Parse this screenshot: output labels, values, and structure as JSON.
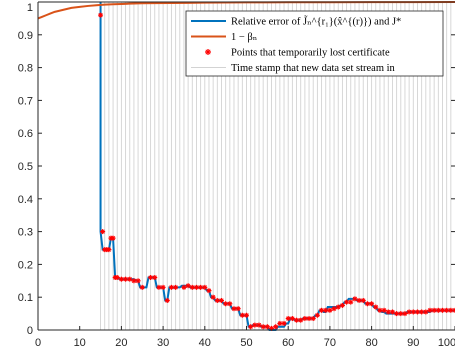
{
  "chart_data": {
    "type": "line",
    "xlim": [
      0,
      100
    ],
    "ylim": [
      0,
      1
    ],
    "xticks": [
      "0",
      "10",
      "20",
      "30",
      "40",
      "50",
      "60",
      "70",
      "80",
      "90",
      "100"
    ],
    "yticks": [
      "0",
      "0.1",
      "0.2",
      "0.3",
      "0.4",
      "0.5",
      "0.6",
      "0.7",
      "0.8",
      "0.9",
      "1"
    ],
    "grid": false,
    "legend_position": "top-right",
    "colors": {
      "relative_error": "#0072BD",
      "one_minus_beta": "#D95319",
      "lost_points": "#FF0000",
      "timestamps": "#D3D3D3"
    },
    "legend": [
      {
        "key": "relative_error",
        "label": "Relative error of J̃ₙ^{r₁}(x̂^{(r)}) and J*"
      },
      {
        "key": "one_minus_beta",
        "label": "1 − βₙ"
      },
      {
        "key": "lost_points",
        "label": "Points that temporarily lost certificate"
      },
      {
        "key": "timestamps",
        "label": "Time stamp that new data set stream in"
      }
    ],
    "series": [
      {
        "name": "Relative error of J̃ₙ^{r₁}(x̂^{(r)}) and J*",
        "x": [
          15,
          15,
          15.5,
          17,
          17.5,
          18,
          18.5,
          19,
          19.5,
          23,
          23.5,
          24,
          24.5,
          26,
          26.5,
          28,
          28.5,
          30,
          30.5,
          31,
          31.5,
          34,
          34.5,
          36,
          36.5,
          40,
          40.5,
          41,
          41.5,
          42,
          42.5,
          44,
          44.5,
          46,
          46.5,
          48,
          48.5,
          50,
          50.5,
          51,
          51.5,
          53,
          53.5,
          55,
          55.5,
          57,
          57.5,
          59,
          59.5,
          60,
          60.5,
          61,
          61.5,
          63,
          63.5,
          66,
          66.5,
          67,
          67.5,
          68,
          68.5,
          69,
          69.5,
          72,
          72.5,
          73,
          73.5,
          74,
          74.5,
          76,
          76.5,
          78,
          78.5,
          80,
          80.5,
          81,
          81.5,
          82,
          82.5,
          83,
          83.5,
          88,
          88.5,
          94,
          94.5,
          100
        ],
        "y": [
          1,
          0.3,
          0.245,
          0.245,
          0.28,
          0.28,
          0.16,
          0.16,
          0.155,
          0.155,
          0.15,
          0.15,
          0.13,
          0.13,
          0.16,
          0.16,
          0.13,
          0.13,
          0.09,
          0.09,
          0.13,
          0.13,
          0.135,
          0.135,
          0.13,
          0.13,
          0.12,
          0.12,
          0.1,
          0.1,
          0.09,
          0.09,
          0.08,
          0.08,
          0.065,
          0.065,
          0.045,
          0.045,
          0.01,
          0.01,
          0.015,
          0.015,
          0.01,
          0.01,
          -0.02,
          -0.02,
          0.01,
          0.01,
          0.02,
          0.02,
          0.035,
          0.035,
          0.03,
          0.03,
          0.035,
          0.035,
          0.045,
          0.045,
          0.06,
          0.06,
          0.055,
          0.055,
          0.07,
          0.07,
          0.075,
          0.075,
          0.085,
          0.085,
          0.095,
          0.095,
          0.09,
          0.09,
          0.08,
          0.08,
          0.07,
          0.07,
          0.06,
          0.06,
          0.055,
          0.055,
          0.05,
          0.05,
          0.055,
          0.055,
          0.06,
          0.06
        ]
      },
      {
        "name": "1 − βₙ",
        "x": [
          0,
          1,
          2,
          3,
          4,
          5,
          6,
          7,
          8,
          10,
          12,
          14,
          16,
          18,
          20,
          22,
          25,
          28,
          32,
          36,
          40,
          45,
          50,
          55,
          60,
          70,
          80,
          90,
          100
        ],
        "y": [
          0.95,
          0.955,
          0.96,
          0.965,
          0.97,
          0.973,
          0.976,
          0.979,
          0.982,
          0.985,
          0.988,
          0.99,
          0.992,
          0.993,
          0.994,
          0.995,
          0.996,
          0.9965,
          0.997,
          0.9975,
          0.998,
          0.9985,
          0.999,
          0.999,
          0.9992,
          0.9994,
          0.9996,
          0.9998,
          1.0
        ]
      }
    ],
    "lost_points": {
      "name": "Points that temporarily lost certificate",
      "x": [
        15,
        15.5,
        16,
        16.5,
        17,
        17.5,
        18,
        18.5,
        19,
        20,
        21,
        22,
        23,
        24,
        25,
        27,
        28,
        29,
        30,
        31,
        32,
        33,
        35,
        36,
        37,
        38,
        39,
        40,
        41,
        42,
        43,
        44,
        45,
        46,
        47,
        48,
        49,
        50,
        51,
        52,
        53,
        54,
        55,
        56,
        57,
        58,
        59,
        60,
        61,
        62,
        63,
        64,
        65,
        66,
        67,
        68,
        69,
        70,
        71,
        72,
        73,
        74,
        75,
        76,
        77,
        78,
        79,
        80,
        81,
        82,
        83,
        84,
        85,
        86,
        87,
        88,
        89,
        90,
        91,
        92,
        93,
        94,
        95,
        96,
        97,
        98,
        99,
        100
      ],
      "y": [
        0.96,
        0.3,
        0.245,
        0.245,
        0.245,
        0.28,
        0.28,
        0.16,
        0.16,
        0.155,
        0.155,
        0.155,
        0.15,
        0.15,
        0.13,
        0.16,
        0.16,
        0.13,
        0.13,
        0.09,
        0.13,
        0.13,
        0.13,
        0.135,
        0.13,
        0.13,
        0.13,
        0.13,
        0.12,
        0.1,
        0.09,
        0.09,
        0.08,
        0.08,
        0.065,
        0.065,
        0.045,
        0.045,
        0.01,
        0.015,
        0.015,
        0.01,
        0.01,
        0.005,
        0.01,
        0.02,
        0.02,
        0.035,
        0.035,
        0.03,
        0.03,
        0.035,
        0.035,
        0.035,
        0.045,
        0.06,
        0.06,
        0.06,
        0.065,
        0.07,
        0.075,
        0.085,
        0.085,
        0.095,
        0.09,
        0.09,
        0.08,
        0.08,
        0.07,
        0.06,
        0.06,
        0.055,
        0.055,
        0.05,
        0.05,
        0.05,
        0.055,
        0.055,
        0.055,
        0.055,
        0.055,
        0.06,
        0.06,
        0.06,
        0.06,
        0.06,
        0.06,
        0.06
      ]
    },
    "timestamps": [
      15,
      16,
      17,
      18,
      19,
      20,
      21,
      22,
      23,
      24,
      25,
      26,
      27,
      28,
      29,
      30,
      31,
      32,
      33,
      34,
      35,
      36,
      37,
      38,
      39,
      40,
      41,
      42,
      43,
      44,
      45,
      46,
      47,
      48,
      49,
      50,
      51,
      52,
      53,
      54,
      55,
      56,
      57,
      58,
      59,
      60,
      61,
      62,
      63,
      64,
      65,
      66,
      67,
      68,
      69,
      70,
      71,
      72,
      73,
      74,
      75,
      76,
      77,
      78,
      79,
      80,
      81,
      82,
      83,
      84,
      85,
      86,
      87,
      88,
      89,
      90,
      91,
      92,
      93,
      94,
      95,
      96,
      97,
      98,
      99
    ]
  }
}
